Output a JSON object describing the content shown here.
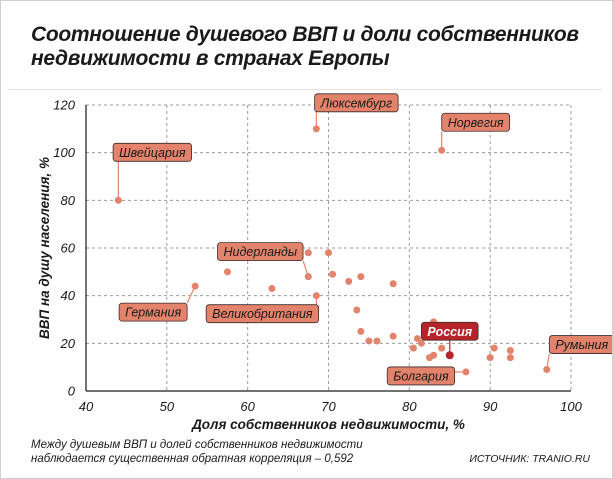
{
  "title": "Соотношение душевого ВВП и доли собственников недвижимости в странах Европы",
  "note": "Между душевым ВВП и долей собственников недвижимости наблюдается существенная обратная корреляция – 0,592",
  "source": "ИСТОЧНИК: TRANIO.RU",
  "colors": {
    "point": "#e3836c",
    "highlight": "#b5242a",
    "label_fill": "#e3836c",
    "highlight_label_fill": "#b5242a",
    "grid": "#9b9b9b"
  },
  "chart_data": {
    "type": "scatter",
    "xlabel": "Доля собственников недвижимости, %",
    "ylabel": "ВВП на душу населения, %",
    "xlim": [
      40,
      100
    ],
    "ylim": [
      0,
      120
    ],
    "xticks": [
      40,
      50,
      60,
      70,
      80,
      90,
      100
    ],
    "yticks": [
      0,
      20,
      40,
      60,
      80,
      100,
      120
    ],
    "grid": true,
    "points": [
      {
        "x": 44,
        "y": 80,
        "label": "Швейцария"
      },
      {
        "x": 68.5,
        "y": 110,
        "label": "Люксембург"
      },
      {
        "x": 84,
        "y": 101,
        "label": "Норвегия"
      },
      {
        "x": 67.5,
        "y": 48,
        "label": "Нидерланды"
      },
      {
        "x": 53.5,
        "y": 44,
        "label": "Германия"
      },
      {
        "x": 68.5,
        "y": 40,
        "label": "Великобритания"
      },
      {
        "x": 87,
        "y": 8,
        "label": "Болгария"
      },
      {
        "x": 85,
        "y": 15,
        "label": "Россия",
        "highlight": true
      },
      {
        "x": 97,
        "y": 9,
        "label": "Румыния"
      },
      {
        "x": 57.5,
        "y": 50
      },
      {
        "x": 63,
        "y": 43
      },
      {
        "x": 67.5,
        "y": 58
      },
      {
        "x": 70,
        "y": 58
      },
      {
        "x": 70.5,
        "y": 49
      },
      {
        "x": 72.5,
        "y": 46
      },
      {
        "x": 73.5,
        "y": 34
      },
      {
        "x": 74,
        "y": 48
      },
      {
        "x": 74,
        "y": 25
      },
      {
        "x": 75,
        "y": 21
      },
      {
        "x": 76,
        "y": 21
      },
      {
        "x": 78,
        "y": 23
      },
      {
        "x": 78,
        "y": 45
      },
      {
        "x": 80.5,
        "y": 18
      },
      {
        "x": 81,
        "y": 22
      },
      {
        "x": 81.5,
        "y": 20
      },
      {
        "x": 82.5,
        "y": 14
      },
      {
        "x": 83,
        "y": 15
      },
      {
        "x": 83,
        "y": 29
      },
      {
        "x": 84,
        "y": 18
      },
      {
        "x": 90,
        "y": 14
      },
      {
        "x": 90.5,
        "y": 18
      },
      {
        "x": 92.5,
        "y": 14
      },
      {
        "x": 92.5,
        "y": 17
      }
    ]
  }
}
